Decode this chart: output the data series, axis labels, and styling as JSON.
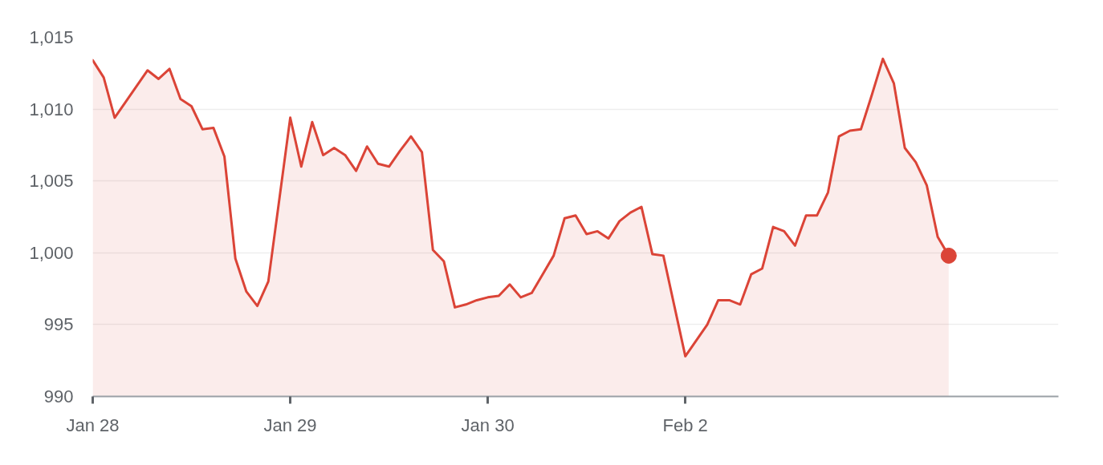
{
  "chart_data": {
    "type": "area",
    "categories": [
      "Jan 28",
      null,
      null,
      null,
      null,
      null,
      null,
      null,
      null,
      null,
      null,
      null,
      null,
      null,
      null,
      null,
      null,
      null,
      "Jan 29",
      null,
      null,
      null,
      null,
      null,
      null,
      null,
      null,
      null,
      null,
      null,
      null,
      null,
      null,
      null,
      null,
      null,
      "Jan 30",
      null,
      null,
      null,
      null,
      null,
      null,
      null,
      null,
      null,
      null,
      null,
      null,
      null,
      null,
      null,
      null,
      null,
      "Feb 2",
      null,
      null,
      null,
      null,
      null,
      null,
      null,
      null,
      null,
      null,
      null,
      null,
      null,
      null,
      null,
      null,
      null,
      null,
      null,
      null,
      null,
      null,
      null,
      null,
      null,
      null,
      null,
      null,
      null,
      null,
      null,
      null,
      null,
      null
    ],
    "series": [
      {
        "color": "#db4437",
        "values": [
          1013.4,
          1012.2,
          1009.4,
          1010.5,
          1011.6,
          1012.7,
          1012.1,
          1012.8,
          1010.7,
          1010.2,
          1008.6,
          1008.7,
          1006.7,
          999.6,
          997.3,
          996.3,
          998.0,
          1003.7,
          1009.4,
          1006.0,
          1009.1,
          1006.8,
          1007.3,
          1006.8,
          1005.7,
          1007.4,
          1006.2,
          1006.0,
          1007.1,
          1008.1,
          1007.0,
          1000.2,
          999.4,
          996.2,
          996.4,
          996.7,
          996.9,
          997.0,
          997.8,
          996.9,
          997.2,
          998.5,
          999.8,
          1002.4,
          1002.6,
          1001.3,
          1001.5,
          1001.0,
          1002.2,
          1002.8,
          1003.2,
          999.9,
          999.8,
          996.3,
          992.8,
          993.9,
          995.0,
          996.7,
          996.7,
          996.4,
          998.5,
          998.9,
          1001.8,
          1001.5,
          1000.5,
          1002.6,
          1002.6,
          1004.2,
          1008.1,
          1008.5,
          1008.6,
          1011.0,
          1013.5,
          1011.8,
          1007.3,
          1006.3,
          1004.7,
          1001.1,
          999.8,
          null,
          null,
          null,
          null,
          null,
          null,
          null,
          null,
          null,
          null
        ]
      },
      {
        "type": "scatter",
        "marker": "circle",
        "color": "#db4437",
        "values": [
          null,
          null,
          null,
          null,
          null,
          null,
          null,
          null,
          null,
          null,
          null,
          null,
          null,
          null,
          null,
          null,
          null,
          null,
          null,
          null,
          null,
          null,
          null,
          null,
          null,
          null,
          null,
          null,
          null,
          null,
          null,
          null,
          null,
          null,
          null,
          null,
          null,
          null,
          null,
          null,
          null,
          null,
          null,
          null,
          null,
          null,
          null,
          null,
          null,
          null,
          null,
          null,
          null,
          null,
          null,
          null,
          null,
          null,
          null,
          null,
          null,
          null,
          null,
          null,
          null,
          null,
          null,
          null,
          null,
          null,
          null,
          null,
          null,
          null,
          null,
          null,
          null,
          null,
          999.8,
          null,
          null,
          null,
          null,
          null,
          null,
          null,
          null,
          null,
          null
        ]
      }
    ],
    "ylim": [
      990,
      1015
    ],
    "yticks": [
      990,
      995,
      {
        "value": 1000,
        "label": "1,000"
      },
      {
        "value": 1005,
        "label": "1,005"
      },
      {
        "value": 1010,
        "label": "1,010"
      },
      {
        "value": 1015,
        "label": "1,015"
      }
    ],
    "grid": "y",
    "line_style": "solid"
  }
}
